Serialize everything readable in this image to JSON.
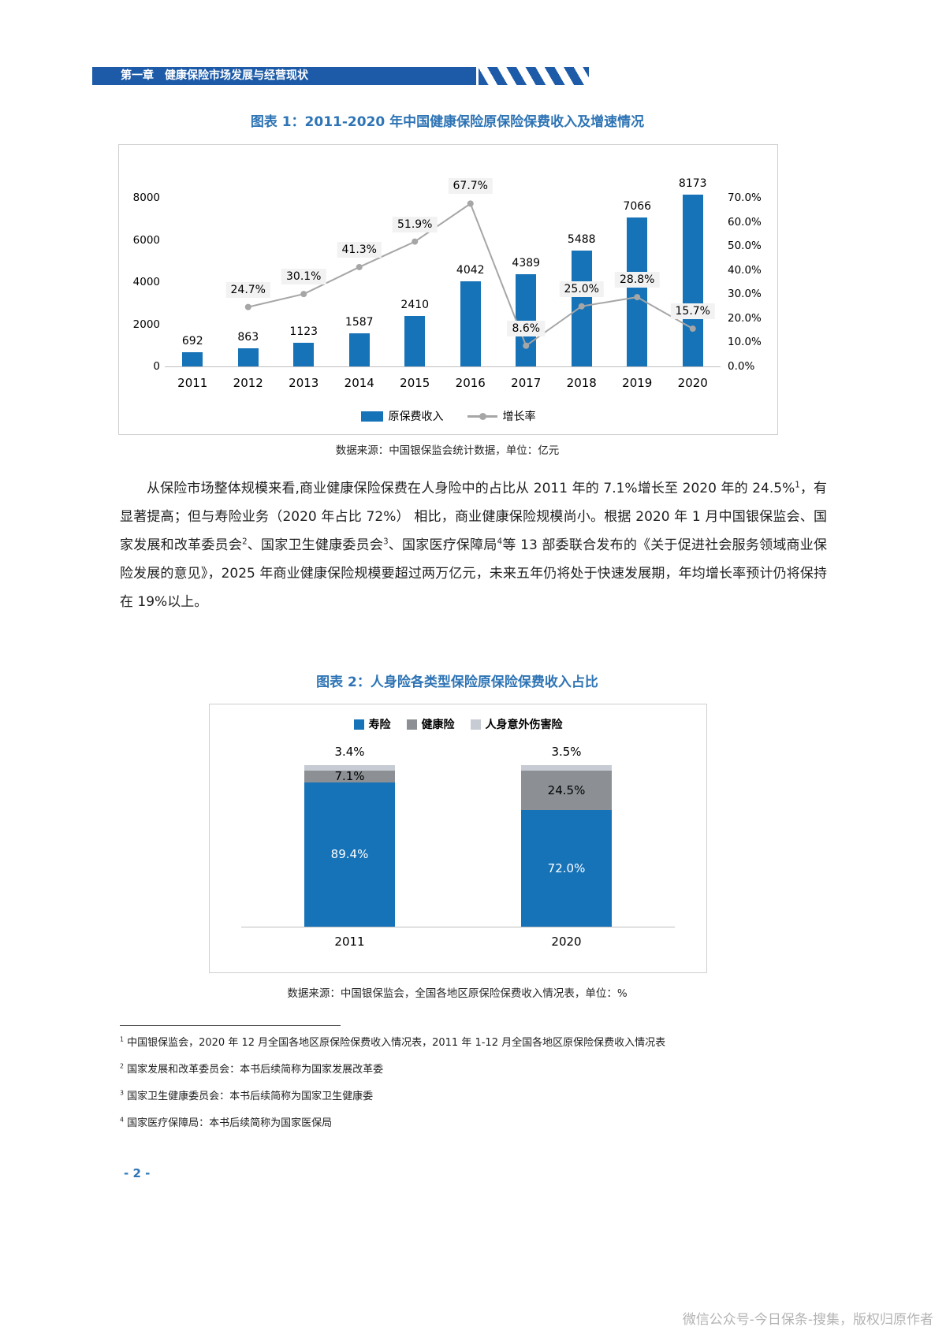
{
  "page": {
    "header": {
      "chapter": "第一章　健康保险市场发展与经营现状"
    },
    "page_number": "- 2 -",
    "watermark": "微信公众号-今日保条-搜集，版权归原作者"
  },
  "figure1": {
    "title": "图表 1：2011-2020 年中国健康保险原保险保费收入及增速情况",
    "source": "数据来源：中国银保监会统计数据，单位：亿元"
  },
  "figure2": {
    "title": "图表 2：人身险各类型保险原保险保费收入占比",
    "source": "数据来源：中国银保监会，全国各地区原保险保费收入情况表，单位：%"
  },
  "chart_data": [
    {
      "type": "bar",
      "title": "图表 1：2011-2020 年中国健康保险原保险保费收入及增速情况",
      "categories": [
        "2011",
        "2012",
        "2013",
        "2014",
        "2015",
        "2016",
        "2017",
        "2018",
        "2019",
        "2020"
      ],
      "series": [
        {
          "name": "原保费收入",
          "kind": "bar",
          "axis": "left",
          "unit": "亿元",
          "color": "#1673B8",
          "values": [
            692,
            863,
            1123,
            1587,
            2410,
            4042,
            4389,
            5488,
            7066,
            8173
          ]
        },
        {
          "name": "增长率",
          "kind": "line",
          "axis": "right",
          "unit": "%",
          "color": "#A6A6A6",
          "values": [
            null,
            24.7,
            30.1,
            41.3,
            51.9,
            67.7,
            8.6,
            25.0,
            28.8,
            15.7
          ]
        }
      ],
      "left_axis": {
        "ticks": [
          0,
          2000,
          4000,
          6000,
          8000
        ],
        "max": 8800
      },
      "right_axis": {
        "ticks": [
          "0.0%",
          "10.0%",
          "20.0%",
          "30.0%",
          "40.0%",
          "50.0%",
          "60.0%",
          "70.0%"
        ],
        "max": 77
      },
      "legend_position": "bottom",
      "grid": false
    },
    {
      "type": "bar",
      "subtype": "stacked-percent",
      "title": "图表 2：人身险各类型保险原保险保费收入占比",
      "categories": [
        "2011",
        "2020"
      ],
      "series": [
        {
          "name": "寿险",
          "color": "#1673B8",
          "label_color": "#ffffff",
          "values": [
            89.4,
            72.0
          ]
        },
        {
          "name": "健康险",
          "color": "#8C9094",
          "label_color": "#000000",
          "values": [
            7.1,
            24.5
          ]
        },
        {
          "name": "人身意外伤害险",
          "color": "#C6CBD4",
          "label_color": "#000000",
          "values": [
            3.4,
            3.5
          ]
        }
      ],
      "unit": "%",
      "legend_position": "top",
      "grid": false
    }
  ],
  "paragraph": {
    "segments": [
      {
        "text": "从保险市场整体规模来看,商业健康保险保费在人身险中的占比从 2011 年的 7.1%增长至 2020 年的 24.5%"
      },
      {
        "sup": "1"
      },
      {
        "text": "，有显著提高；但与寿险业务（2020 年占比 72%） 相比，商业健康保险规模尚小。根据 2020 年 1 月中国银保监会、国家发展和改革委员会"
      },
      {
        "sup": "2"
      },
      {
        "text": "、国家卫生健康委员会"
      },
      {
        "sup": "3"
      },
      {
        "text": "、国家医疗保障局"
      },
      {
        "sup": "4"
      },
      {
        "text": "等 13 部委联合发布的《关于促进社会服务领域商业保险发展的意见》，2025 年商业健康保险规模要超过两万亿元，未来五年仍将处于快速发展期，年均增长率预计仍将保持在 19%以上。"
      }
    ]
  },
  "footnotes": [
    {
      "sup": "1",
      "text": "中国银保监会，2020 年 12 月全国各地区原保险保费收入情况表，2011 年 1-12 月全国各地区原保险保费收入情况表"
    },
    {
      "sup": "2",
      "text": "国家发展和改革委员会：本书后续简称为国家发展改革委"
    },
    {
      "sup": "3",
      "text": "国家卫生健康委员会：本书后续简称为国家卫生健康委"
    },
    {
      "sup": "4",
      "text": "国家医疗保障局：本书后续简称为国家医保局"
    }
  ]
}
